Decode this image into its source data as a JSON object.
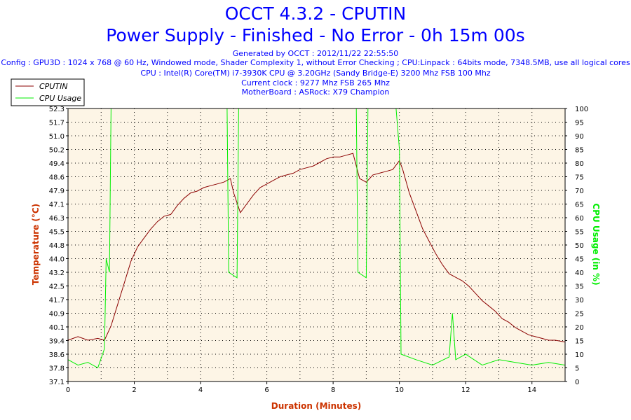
{
  "header": {
    "title": "OCCT 4.3.2 - CPUTIN",
    "subtitle": "Power Supply - Finished - No Error - 0h 15m 00s",
    "generated": "Generated by OCCT : 2012/11/22 22:55:50",
    "config": "Config : GPU3D : 1024 x 768 @ 60 Hz, Windowed mode, Shader Complexity 1, without Error Checking ; CPU:Linpack : 64bits mode, 7348.5MB, use all logical cores",
    "cpu": "CPU : Intel(R) Core(TM) i7-3930K CPU @ 3.20GHz (Sandy Bridge-E) 3200 Mhz FSB 100 Mhz",
    "clock": "Current clock : 9277 Mhz FSB 265 Mhz",
    "board": "MotherBoard : ASRock: X79 Champion"
  },
  "colors": {
    "temperature": "#8b0000",
    "cpu_usage": "#00ee00",
    "plot_bg": "#fdf5e6",
    "axis_title": "#cc3300"
  },
  "chart_data": {
    "type": "line",
    "xlabel": "Duration (Minutes)",
    "ylabel_left": "Temperature (°C)",
    "ylabel_right": "CPU Usage (in %)",
    "xlim": [
      0,
      15
    ],
    "ylim_left": [
      37.1,
      52.3
    ],
    "ylim_right": [
      0,
      100
    ],
    "x_ticks": [
      "0",
      "2",
      "4",
      "6",
      "8",
      "10",
      "12",
      "14"
    ],
    "y_left_ticks": [
      "37.1",
      "37.8",
      "38.6",
      "39.4",
      "40.1",
      "40.9",
      "41.7",
      "42.5",
      "43.2",
      "44.0",
      "44.8",
      "45.5",
      "46.3",
      "47.1",
      "47.9",
      "48.6",
      "49.4",
      "50.2",
      "51.0",
      "51.7",
      "52.3"
    ],
    "y_right_ticks": [
      "0",
      "5",
      "10",
      "15",
      "20",
      "25",
      "30",
      "35",
      "40",
      "45",
      "50",
      "55",
      "60",
      "65",
      "70",
      "75",
      "80",
      "85",
      "90",
      "95",
      "100"
    ],
    "grid": true,
    "legend": "top-left",
    "series": [
      {
        "name": "CPUTIN",
        "axis": "left",
        "points": [
          [
            0,
            39.4
          ],
          [
            0.3,
            39.6
          ],
          [
            0.6,
            39.4
          ],
          [
            0.9,
            39.5
          ],
          [
            1.1,
            39.4
          ],
          [
            1.3,
            40.2
          ],
          [
            1.5,
            41.4
          ],
          [
            1.7,
            42.6
          ],
          [
            1.9,
            43.8
          ],
          [
            2.1,
            44.6
          ],
          [
            2.3,
            45.1
          ],
          [
            2.5,
            45.6
          ],
          [
            2.7,
            46.0
          ],
          [
            2.9,
            46.3
          ],
          [
            3.1,
            46.4
          ],
          [
            3.3,
            46.9
          ],
          [
            3.5,
            47.3
          ],
          [
            3.7,
            47.6
          ],
          [
            3.9,
            47.7
          ],
          [
            4.1,
            47.9
          ],
          [
            4.3,
            48.0
          ],
          [
            4.5,
            48.1
          ],
          [
            4.7,
            48.2
          ],
          [
            4.9,
            48.4
          ],
          [
            5.0,
            47.6
          ],
          [
            5.2,
            46.5
          ],
          [
            5.4,
            47.0
          ],
          [
            5.6,
            47.5
          ],
          [
            5.8,
            47.9
          ],
          [
            6.0,
            48.1
          ],
          [
            6.2,
            48.3
          ],
          [
            6.4,
            48.5
          ],
          [
            6.6,
            48.6
          ],
          [
            6.8,
            48.7
          ],
          [
            7.0,
            48.9
          ],
          [
            7.2,
            49.0
          ],
          [
            7.4,
            49.1
          ],
          [
            7.6,
            49.3
          ],
          [
            7.8,
            49.5
          ],
          [
            8.0,
            49.6
          ],
          [
            8.2,
            49.6
          ],
          [
            8.4,
            49.7
          ],
          [
            8.6,
            49.8
          ],
          [
            8.8,
            48.4
          ],
          [
            9.0,
            48.2
          ],
          [
            9.2,
            48.6
          ],
          [
            9.4,
            48.7
          ],
          [
            9.6,
            48.8
          ],
          [
            9.8,
            48.9
          ],
          [
            10.0,
            49.4
          ],
          [
            10.1,
            48.9
          ],
          [
            10.3,
            47.6
          ],
          [
            10.5,
            46.6
          ],
          [
            10.7,
            45.6
          ],
          [
            10.9,
            44.9
          ],
          [
            11.1,
            44.2
          ],
          [
            11.3,
            43.6
          ],
          [
            11.5,
            43.1
          ],
          [
            11.7,
            42.9
          ],
          [
            11.9,
            42.7
          ],
          [
            12.1,
            42.4
          ],
          [
            12.3,
            42.0
          ],
          [
            12.5,
            41.6
          ],
          [
            12.7,
            41.3
          ],
          [
            12.9,
            41.0
          ],
          [
            13.1,
            40.6
          ],
          [
            13.3,
            40.4
          ],
          [
            13.5,
            40.1
          ],
          [
            13.7,
            39.9
          ],
          [
            13.9,
            39.7
          ],
          [
            14.1,
            39.6
          ],
          [
            14.3,
            39.5
          ],
          [
            14.5,
            39.4
          ],
          [
            14.7,
            39.4
          ],
          [
            15.0,
            39.3
          ]
        ]
      },
      {
        "name": "CPU Usage",
        "axis": "right",
        "points": [
          [
            0,
            8
          ],
          [
            0.3,
            6
          ],
          [
            0.6,
            7
          ],
          [
            0.9,
            5
          ],
          [
            1.1,
            12
          ],
          [
            1.15,
            45
          ],
          [
            1.25,
            40
          ],
          [
            1.3,
            100
          ],
          [
            4.8,
            100
          ],
          [
            4.85,
            40
          ],
          [
            5.1,
            38
          ],
          [
            5.15,
            100
          ],
          [
            8.7,
            100
          ],
          [
            8.75,
            40
          ],
          [
            9.0,
            38
          ],
          [
            9.05,
            100
          ],
          [
            9.9,
            100
          ],
          [
            10.0,
            85
          ],
          [
            10.05,
            10
          ],
          [
            10.5,
            8
          ],
          [
            11.0,
            6
          ],
          [
            11.5,
            9
          ],
          [
            11.6,
            25
          ],
          [
            11.7,
            8
          ],
          [
            12.0,
            10
          ],
          [
            12.5,
            6
          ],
          [
            13.0,
            8
          ],
          [
            13.5,
            7
          ],
          [
            14.0,
            6
          ],
          [
            14.5,
            7
          ],
          [
            15.0,
            6
          ]
        ]
      }
    ]
  }
}
